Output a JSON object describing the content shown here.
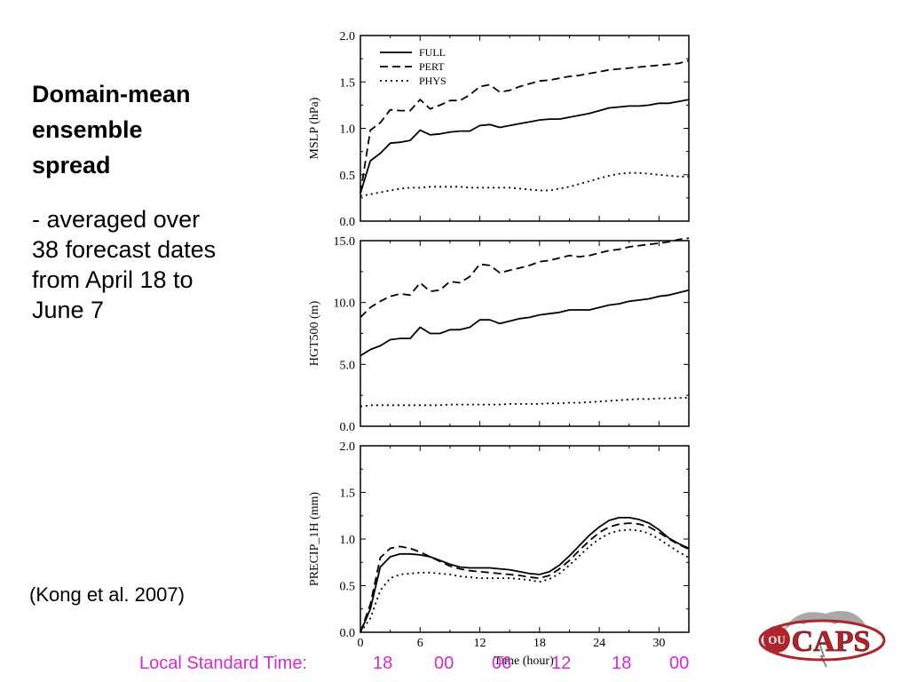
{
  "slide": {
    "heading": [
      "Domain-mean",
      "ensemble",
      "spread"
    ],
    "body": [
      "- averaged over",
      "38 forecast dates",
      "from April 18 to",
      "June 7"
    ],
    "citation": "(Kong et al. 2007)",
    "lst_label": "Local Standard Time:",
    "lst_values": [
      "18",
      "00",
      "06",
      "12",
      "18",
      "00"
    ],
    "lst_color": "#d42ad4",
    "logo_text": "CAPS",
    "logo_emblem": "OU"
  },
  "chart_data": [
    {
      "type": "line",
      "ylabel": "MSLP (hPa)",
      "xlabel": "",
      "xlim": [
        0,
        33
      ],
      "ylim": [
        0,
        2.0
      ],
      "yticks": [
        0.0,
        0.5,
        1.0,
        1.5,
        2.0
      ],
      "ytick_labels": [
        "0.0",
        "0.5",
        "1.0",
        "1.5",
        "2.0"
      ],
      "xticks": [
        0,
        6,
        12,
        18,
        24,
        30
      ],
      "xtick_labels": [],
      "legend": [
        "FULL",
        "PERT",
        "PHYS"
      ],
      "legend_position": "top-left",
      "series": [
        {
          "name": "FULL",
          "style": "solid",
          "x": [
            0,
            1,
            2,
            3,
            4,
            5,
            6,
            7,
            8,
            9,
            10,
            11,
            12,
            13,
            14,
            15,
            16,
            17,
            18,
            19,
            20,
            21,
            22,
            23,
            24,
            25,
            26,
            27,
            28,
            29,
            30,
            31,
            32,
            33
          ],
          "values": [
            0.3,
            0.65,
            0.73,
            0.84,
            0.85,
            0.87,
            0.98,
            0.93,
            0.94,
            0.96,
            0.97,
            0.97,
            1.03,
            1.04,
            1.01,
            1.03,
            1.05,
            1.07,
            1.09,
            1.1,
            1.1,
            1.12,
            1.14,
            1.16,
            1.19,
            1.22,
            1.23,
            1.24,
            1.24,
            1.25,
            1.27,
            1.27,
            1.29,
            1.31
          ]
        },
        {
          "name": "PERT",
          "style": "dashed",
          "x": [
            0,
            1,
            2,
            3,
            4,
            5,
            6,
            7,
            8,
            9,
            10,
            11,
            12,
            13,
            14,
            15,
            16,
            17,
            18,
            19,
            20,
            21,
            22,
            23,
            24,
            25,
            26,
            27,
            28,
            29,
            30,
            31,
            32,
            33
          ],
          "values": [
            0.3,
            0.98,
            1.06,
            1.2,
            1.19,
            1.19,
            1.31,
            1.21,
            1.25,
            1.3,
            1.3,
            1.36,
            1.45,
            1.47,
            1.39,
            1.41,
            1.45,
            1.48,
            1.51,
            1.52,
            1.54,
            1.56,
            1.57,
            1.59,
            1.61,
            1.63,
            1.64,
            1.65,
            1.66,
            1.67,
            1.68,
            1.69,
            1.7,
            1.73
          ]
        },
        {
          "name": "PHYS",
          "style": "dotted",
          "x": [
            0,
            1,
            2,
            3,
            4,
            5,
            6,
            7,
            8,
            9,
            10,
            11,
            12,
            13,
            14,
            15,
            16,
            17,
            18,
            19,
            20,
            21,
            22,
            23,
            24,
            25,
            26,
            27,
            28,
            29,
            30,
            31,
            32,
            33
          ],
          "values": [
            0.27,
            0.29,
            0.31,
            0.33,
            0.35,
            0.36,
            0.36,
            0.37,
            0.37,
            0.37,
            0.37,
            0.36,
            0.36,
            0.36,
            0.36,
            0.36,
            0.35,
            0.34,
            0.33,
            0.33,
            0.35,
            0.37,
            0.4,
            0.43,
            0.46,
            0.49,
            0.51,
            0.52,
            0.52,
            0.51,
            0.5,
            0.49,
            0.48,
            0.48
          ]
        }
      ]
    },
    {
      "type": "line",
      "ylabel": "HGT500 (m)",
      "xlabel": "",
      "xlim": [
        0,
        33
      ],
      "ylim": [
        0,
        15.0
      ],
      "yticks": [
        0.0,
        5.0,
        10.0,
        15.0
      ],
      "ytick_labels": [
        "0.0",
        "5.0",
        "10.0",
        "15.0"
      ],
      "xticks": [
        0,
        6,
        12,
        18,
        24,
        30
      ],
      "xtick_labels": [],
      "series": [
        {
          "name": "FULL",
          "style": "solid",
          "x": [
            0,
            1,
            2,
            3,
            4,
            5,
            6,
            7,
            8,
            9,
            10,
            11,
            12,
            13,
            14,
            15,
            16,
            17,
            18,
            19,
            20,
            21,
            22,
            23,
            24,
            25,
            26,
            27,
            28,
            29,
            30,
            31,
            32,
            33
          ],
          "values": [
            5.7,
            6.2,
            6.5,
            7.0,
            7.1,
            7.1,
            8.0,
            7.5,
            7.5,
            7.8,
            7.8,
            8.0,
            8.6,
            8.6,
            8.3,
            8.5,
            8.7,
            8.8,
            9.0,
            9.1,
            9.2,
            9.4,
            9.4,
            9.4,
            9.6,
            9.8,
            9.9,
            10.1,
            10.2,
            10.3,
            10.5,
            10.6,
            10.8,
            11.0
          ]
        },
        {
          "name": "PERT",
          "style": "dashed",
          "x": [
            0,
            1,
            2,
            3,
            4,
            5,
            6,
            7,
            8,
            9,
            10,
            11,
            12,
            13,
            14,
            15,
            16,
            17,
            18,
            19,
            20,
            21,
            22,
            23,
            24,
            25,
            26,
            27,
            28,
            29,
            30,
            31,
            32,
            33
          ],
          "values": [
            8.8,
            9.6,
            10.1,
            10.5,
            10.7,
            10.6,
            11.6,
            10.9,
            11.0,
            11.7,
            11.6,
            12.1,
            13.1,
            13.0,
            12.4,
            12.6,
            12.8,
            13.0,
            13.3,
            13.4,
            13.6,
            13.8,
            13.7,
            13.8,
            14.0,
            14.2,
            14.3,
            14.5,
            14.6,
            14.7,
            14.8,
            14.9,
            15.1,
            15.2
          ]
        },
        {
          "name": "PHYS",
          "style": "dotted",
          "x": [
            0,
            1,
            2,
            3,
            4,
            5,
            6,
            7,
            8,
            9,
            10,
            11,
            12,
            13,
            14,
            15,
            16,
            17,
            18,
            19,
            20,
            21,
            22,
            23,
            24,
            25,
            26,
            27,
            28,
            29,
            30,
            31,
            32,
            33
          ],
          "values": [
            1.6,
            1.7,
            1.7,
            1.7,
            1.7,
            1.7,
            1.7,
            1.7,
            1.7,
            1.75,
            1.75,
            1.75,
            1.75,
            1.75,
            1.75,
            1.8,
            1.8,
            1.8,
            1.8,
            1.85,
            1.85,
            1.9,
            1.9,
            1.95,
            2.0,
            2.05,
            2.1,
            2.15,
            2.2,
            2.2,
            2.25,
            2.25,
            2.3,
            2.3
          ]
        }
      ]
    },
    {
      "type": "line",
      "ylabel": "PRECIP_1H (mm)",
      "xlabel": "Time (hour)",
      "xlim": [
        0,
        33
      ],
      "ylim": [
        0,
        2.0
      ],
      "yticks": [
        0.0,
        0.5,
        1.0,
        1.5,
        2.0
      ],
      "ytick_labels": [
        "0.0",
        "0.5",
        "1.0",
        "1.5",
        "2.0"
      ],
      "xticks": [
        0,
        6,
        12,
        18,
        24,
        30
      ],
      "xtick_labels": [
        "0",
        "6",
        "12",
        "18",
        "24",
        "30"
      ],
      "series": [
        {
          "name": "FULL",
          "style": "solid",
          "x": [
            0,
            1,
            2,
            3,
            4,
            5,
            6,
            7,
            8,
            9,
            10,
            11,
            12,
            13,
            14,
            15,
            16,
            17,
            18,
            19,
            20,
            21,
            22,
            23,
            24,
            25,
            26,
            27,
            28,
            29,
            30,
            31,
            32,
            33
          ],
          "values": [
            0.0,
            0.25,
            0.7,
            0.81,
            0.84,
            0.84,
            0.83,
            0.81,
            0.77,
            0.73,
            0.7,
            0.69,
            0.69,
            0.69,
            0.68,
            0.67,
            0.65,
            0.63,
            0.62,
            0.65,
            0.72,
            0.82,
            0.93,
            1.04,
            1.13,
            1.2,
            1.23,
            1.23,
            1.21,
            1.17,
            1.1,
            1.01,
            0.95,
            0.9
          ]
        },
        {
          "name": "PERT",
          "style": "dashed",
          "x": [
            0,
            1,
            2,
            3,
            4,
            5,
            6,
            7,
            8,
            9,
            10,
            11,
            12,
            13,
            14,
            15,
            16,
            17,
            18,
            19,
            20,
            21,
            22,
            23,
            24,
            25,
            26,
            27,
            28,
            29,
            30,
            31,
            32,
            33
          ],
          "values": [
            0.0,
            0.3,
            0.8,
            0.9,
            0.92,
            0.9,
            0.86,
            0.81,
            0.76,
            0.71,
            0.68,
            0.66,
            0.65,
            0.64,
            0.63,
            0.62,
            0.61,
            0.59,
            0.58,
            0.61,
            0.68,
            0.77,
            0.88,
            0.98,
            1.07,
            1.13,
            1.16,
            1.17,
            1.16,
            1.13,
            1.07,
            1.0,
            0.94,
            0.89
          ]
        },
        {
          "name": "PHYS",
          "style": "dotted",
          "x": [
            0,
            1,
            2,
            3,
            4,
            5,
            6,
            7,
            8,
            9,
            10,
            11,
            12,
            13,
            14,
            15,
            16,
            17,
            18,
            19,
            20,
            21,
            22,
            23,
            24,
            25,
            26,
            27,
            28,
            29,
            30,
            31,
            32,
            33
          ],
          "values": [
            0.0,
            0.15,
            0.45,
            0.58,
            0.62,
            0.63,
            0.64,
            0.64,
            0.63,
            0.62,
            0.6,
            0.59,
            0.58,
            0.58,
            0.58,
            0.58,
            0.57,
            0.56,
            0.54,
            0.57,
            0.63,
            0.72,
            0.82,
            0.92,
            1.0,
            1.06,
            1.09,
            1.1,
            1.09,
            1.06,
            1.0,
            0.93,
            0.86,
            0.8
          ]
        }
      ]
    }
  ]
}
